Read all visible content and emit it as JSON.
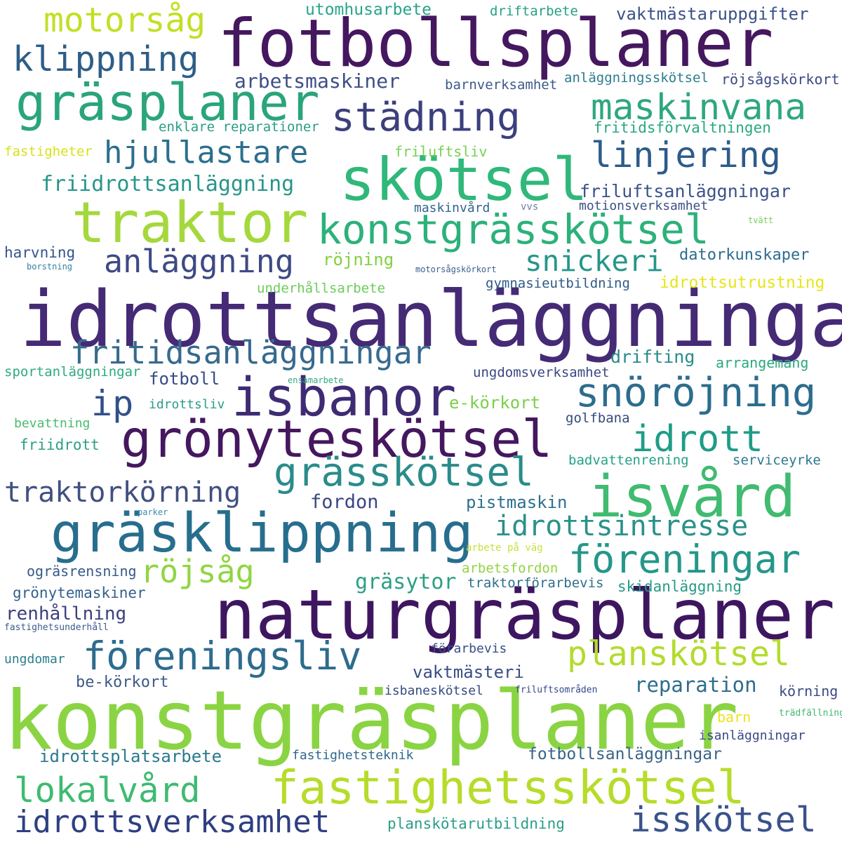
{
  "title": "word cloud",
  "words": [
    {
      "text": "fotbollsplaner",
      "color": "#45175f"
    },
    {
      "text": "idrottsanläggningar",
      "color": "#452a75"
    },
    {
      "text": "naturgräsplaner",
      "color": "#3e1660"
    },
    {
      "text": "konstgräsplaner",
      "color": "#8ad443"
    },
    {
      "text": "gräsplaner",
      "color": "#2aa57a"
    },
    {
      "text": "skötsel",
      "color": "#2fb87a"
    },
    {
      "text": "traktor",
      "color": "#a4d83c"
    },
    {
      "text": "konstgrässkötsel",
      "color": "#2cb17a"
    },
    {
      "text": "isbanor",
      "color": "#3f2b74"
    },
    {
      "text": "grönyteskötsel",
      "color": "#45175f"
    },
    {
      "text": "gräsklippning",
      "color": "#276e8e"
    },
    {
      "text": "isvård",
      "color": "#40bb70"
    },
    {
      "text": "fastighetsskötsel",
      "color": "#b6dc2a"
    },
    {
      "text": "föreningsliv",
      "color": "#2d6c8e"
    },
    {
      "text": "motorsåg",
      "color": "#c3df25"
    },
    {
      "text": "klippning",
      "color": "#2e5e88"
    },
    {
      "text": "städning",
      "color": "#3c3f7d"
    },
    {
      "text": "maskinvana",
      "color": "#2ea87d"
    },
    {
      "text": "hjullastare",
      "color": "#2c6f8d"
    },
    {
      "text": "linjering",
      "color": "#2d5b8b"
    },
    {
      "text": "anläggning",
      "color": "#3e4a84"
    },
    {
      "text": "snickeri",
      "color": "#26968a"
    },
    {
      "text": "fritidsanläggningar",
      "color": "#376a8d"
    },
    {
      "text": "ip",
      "color": "#30508a"
    },
    {
      "text": "snöröjning",
      "color": "#2c6d8e"
    },
    {
      "text": "idrott",
      "color": "#1f9c86"
    },
    {
      "text": "grässkötsel",
      "color": "#2a8c8a"
    },
    {
      "text": "traktorkörning",
      "color": "#41507f"
    },
    {
      "text": "idrottsintresse",
      "color": "#2a918a"
    },
    {
      "text": "föreningar",
      "color": "#249789"
    },
    {
      "text": "röjsåg",
      "color": "#90d542"
    },
    {
      "text": "planskötsel",
      "color": "#b3db2e"
    },
    {
      "text": "lokalvård",
      "color": "#3fba72"
    },
    {
      "text": "idrottsverksamhet",
      "color": "#2f3f81"
    },
    {
      "text": "isskötsel",
      "color": "#3a528b"
    },
    {
      "text": "utomhusarbete",
      "color": "#28a589"
    },
    {
      "text": "driftarbete",
      "color": "#26a083"
    },
    {
      "text": "vaktmästaruppgifter",
      "color": "#3b5389"
    },
    {
      "text": "arbetsmaskiner",
      "color": "#3d4f87"
    },
    {
      "text": "barnverksamhet",
      "color": "#3b5a89"
    },
    {
      "text": "anläggningsskötsel",
      "color": "#2c7c8e"
    },
    {
      "text": "röjsågskörkort",
      "color": "#3b4985"
    },
    {
      "text": "enklare reparationer",
      "color": "#2a9d86"
    },
    {
      "text": "fritidsförvaltningen",
      "color": "#28a882"
    },
    {
      "text": "fastigheter",
      "color": "#d7e219"
    },
    {
      "text": "friluftsliv",
      "color": "#78d152"
    },
    {
      "text": "friidrottsanläggning",
      "color": "#27968a"
    },
    {
      "text": "friluftsanläggningar",
      "color": "#3b5389"
    },
    {
      "text": "maskinvård",
      "color": "#31648e"
    },
    {
      "text": "vvs",
      "color": "#6d7fa3"
    },
    {
      "text": "motionsverksamhet",
      "color": "#3c5187"
    },
    {
      "text": "tvätt",
      "color": "#74d05a"
    },
    {
      "text": "harvning",
      "color": "#34558b"
    },
    {
      "text": "borstning",
      "color": "#3382a2"
    },
    {
      "text": "röjning",
      "color": "#83cf43"
    },
    {
      "text": "motorsågskörkort",
      "color": "#3a5f8c"
    },
    {
      "text": "datorkunskaper",
      "color": "#2e6c8e"
    },
    {
      "text": "underhållsarbete",
      "color": "#6ccd5a"
    },
    {
      "text": "gymnasieutbildning",
      "color": "#2e5a87"
    },
    {
      "text": "idrottsutrustning",
      "color": "#e8e419"
    },
    {
      "text": "sportanläggningar",
      "color": "#2eaa82"
    },
    {
      "text": "fotboll",
      "color": "#354b84"
    },
    {
      "text": "ensamarbete",
      "color": "#34a882"
    },
    {
      "text": "ungdomsverksamhet",
      "color": "#3a4782"
    },
    {
      "text": "drifting",
      "color": "#2a8a8a"
    },
    {
      "text": "arrangemang",
      "color": "#2ba880"
    },
    {
      "text": "idrottsliv",
      "color": "#2c9c88"
    },
    {
      "text": "e-körkort",
      "color": "#7acf4b"
    },
    {
      "text": "bevattning",
      "color": "#48bc6c"
    },
    {
      "text": "golfbana",
      "color": "#354b7e"
    },
    {
      "text": "friidrott",
      "color": "#2e9e85"
    },
    {
      "text": "badvattenrening",
      "color": "#25a188"
    },
    {
      "text": "serviceyrke",
      "color": "#2b7890"
    },
    {
      "text": "fordon",
      "color": "#3a4781"
    },
    {
      "text": "pistmaskin",
      "color": "#2d718e"
    },
    {
      "text": "parker",
      "color": "#3c8ea6"
    },
    {
      "text": "arbete på väg",
      "color": "#c9e03a"
    },
    {
      "text": "ogräsrensning",
      "color": "#385a8a"
    },
    {
      "text": "arbetsfordon",
      "color": "#93d441"
    },
    {
      "text": "gräsytor",
      "color": "#2aa082"
    },
    {
      "text": "traktorförarbevis",
      "color": "#2c6f8d"
    },
    {
      "text": "skidanläggning",
      "color": "#259a87"
    },
    {
      "text": "grönytemaskiner",
      "color": "#33628c"
    },
    {
      "text": "renhållning",
      "color": "#3c3f7c"
    },
    {
      "text": "fastighetsunderhåll",
      "color": "#3d5a8c"
    },
    {
      "text": "förarbevis",
      "color": "#384e84"
    },
    {
      "text": "ungdomar",
      "color": "#2c7d8d"
    },
    {
      "text": "vaktmästeri",
      "color": "#3a4e86"
    },
    {
      "text": "be-körkort",
      "color": "#3c5a88"
    },
    {
      "text": "reparation",
      "color": "#2e6d8d"
    },
    {
      "text": "friluftsområden",
      "color": "#36498a"
    },
    {
      "text": "isbaneskötsel",
      "color": "#354b82"
    },
    {
      "text": "körning",
      "color": "#3c4b85"
    },
    {
      "text": "trädfällning",
      "color": "#42b870"
    },
    {
      "text": "barn",
      "color": "#f0e21b"
    },
    {
      "text": "isanläggningar",
      "color": "#3b4a84"
    },
    {
      "text": "idrottsplatsarbete",
      "color": "#2a798d"
    },
    {
      "text": "fastighetsteknik",
      "color": "#30678d"
    },
    {
      "text": "fotbollsanläggningar",
      "color": "#386488"
    },
    {
      "text": "planskötarutbildning",
      "color": "#2b9f87"
    }
  ]
}
